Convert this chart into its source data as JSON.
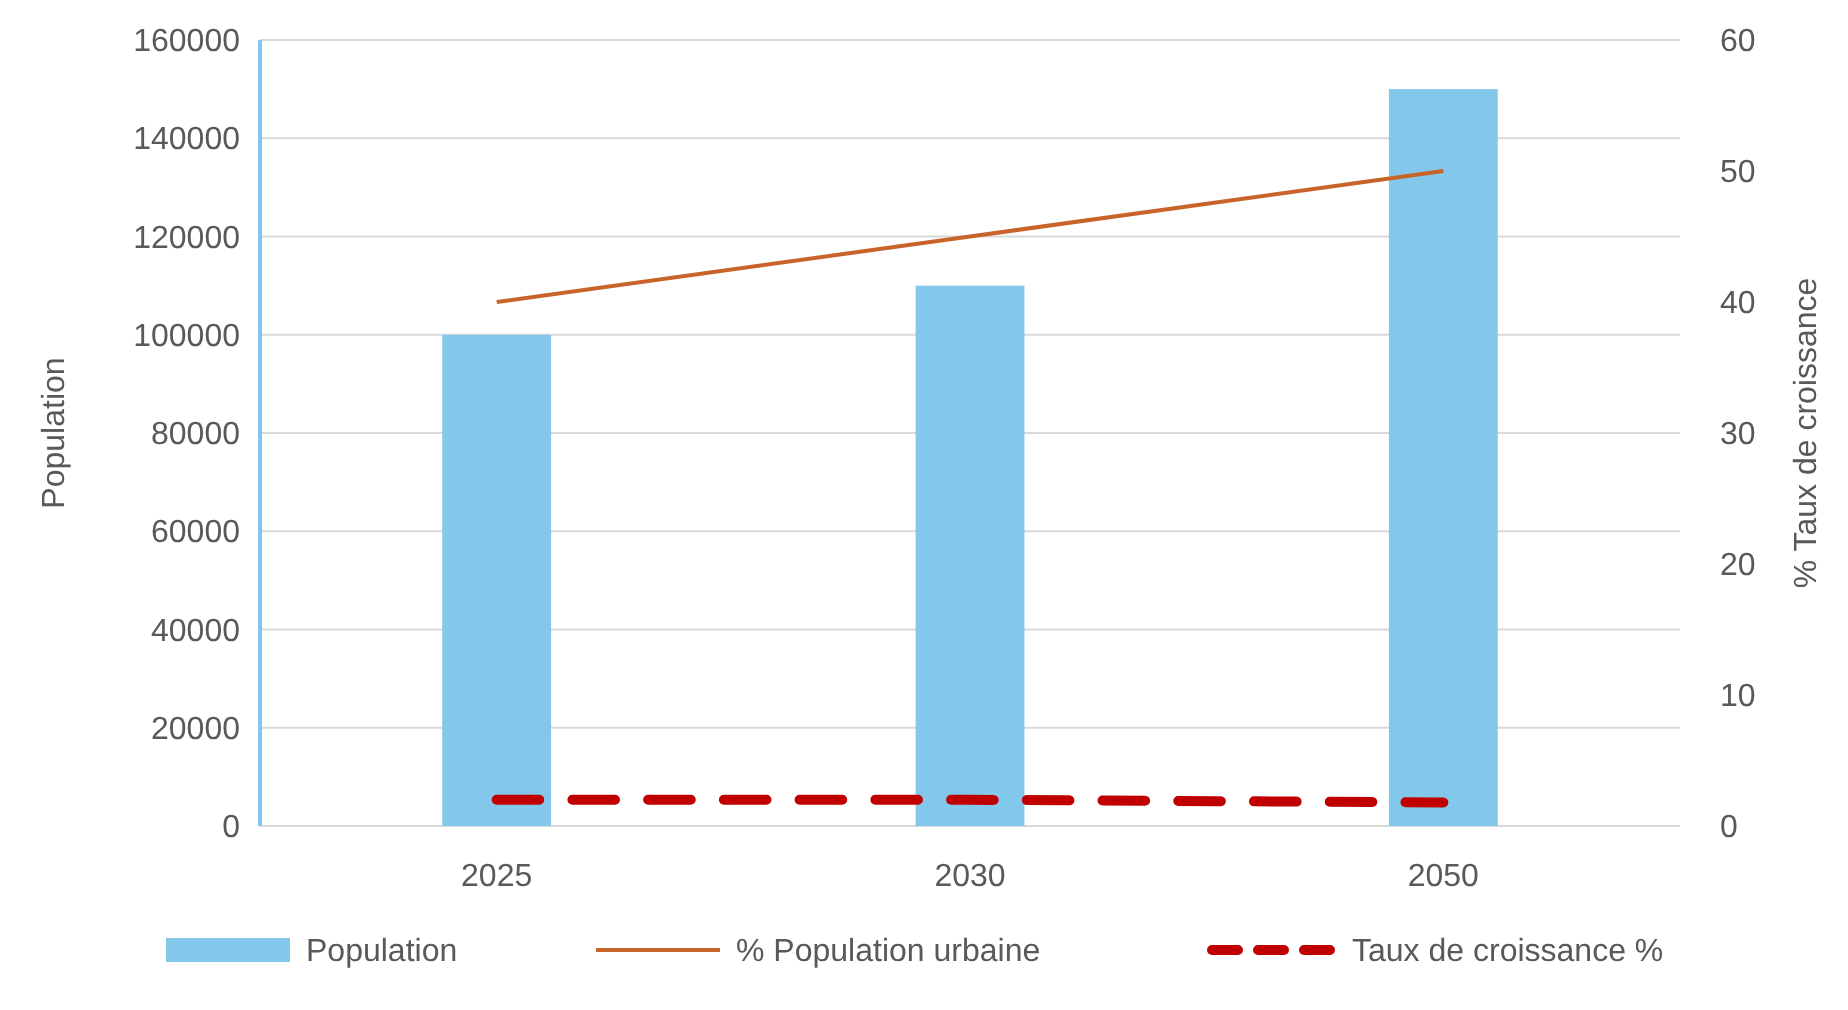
{
  "chart_data": {
    "type": "bar",
    "categories": [
      "2025",
      "2030",
      "2050"
    ],
    "series": [
      {
        "name": "Population",
        "color": "#83c8eb",
        "values": [
          100000,
          110000,
          150000
        ]
      },
      {
        "name": "% Population urbaine",
        "type": "line",
        "axis": "y2",
        "color": "#c8642a",
        "line_style": "solid",
        "values": [
          40,
          45,
          50
        ]
      },
      {
        "name": "Taux de croissance %",
        "type": "line",
        "axis": "y2",
        "color": "#c00000",
        "line_style": "dashed",
        "values": [
          2,
          2,
          1.8
        ]
      }
    ],
    "ylabel": "Population",
    "y2label": "% Taux de croissance",
    "ylim": [
      0,
      160000
    ],
    "yticks": [
      0,
      20000,
      40000,
      60000,
      80000,
      100000,
      120000,
      140000,
      160000
    ],
    "y2lim": [
      0,
      60
    ],
    "y2ticks": [
      0,
      10,
      20,
      30,
      40,
      50,
      60
    ],
    "grid": "y",
    "legend": "bottom"
  }
}
